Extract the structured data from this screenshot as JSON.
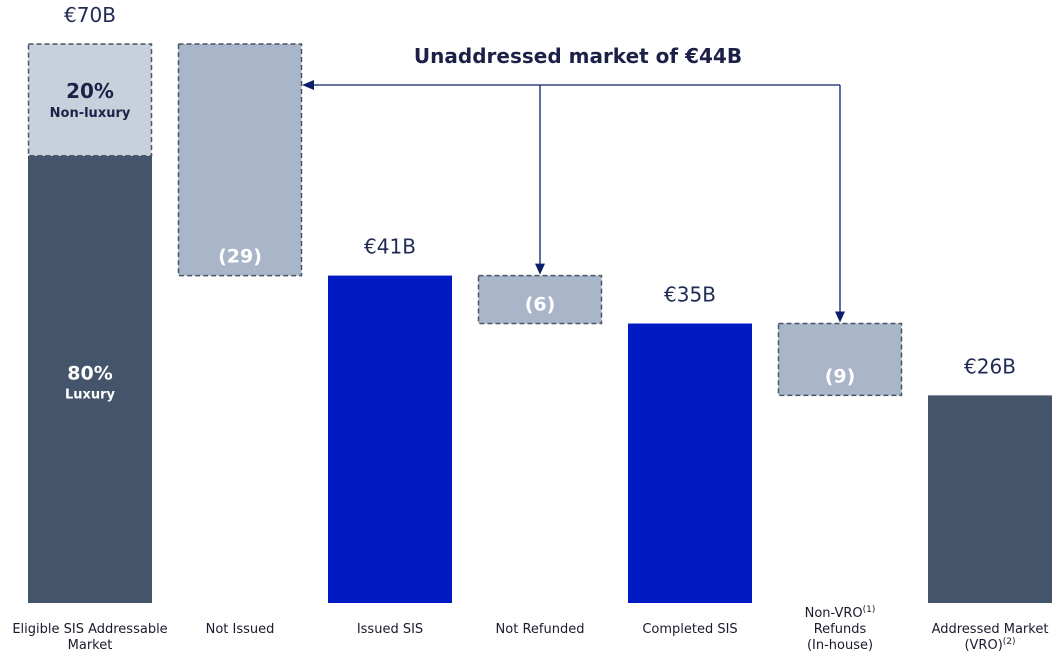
{
  "chart_data": {
    "type": "waterfall",
    "title": "Unaddressed market of €44B",
    "ylim": [
      0,
      70
    ],
    "grid": false,
    "colors": {
      "total_dark": "#44546a",
      "total_blue": "#001bc4",
      "decrease": "#a9b5c8",
      "non_luxury": "#c8d0dc",
      "border": "#4a5568",
      "arrow": "#0d1f6b",
      "title": "#1e2147"
    },
    "bars": [
      {
        "category": [
          "Eligible SIS Addressable",
          "Market"
        ],
        "kind": "total",
        "value": 70,
        "label": "€70B",
        "color": "total_dark",
        "split": [
          {
            "pct": 80,
            "text": "80%",
            "sub": "Luxury"
          },
          {
            "pct": 20,
            "text": "20%",
            "sub": "Non-luxury"
          }
        ]
      },
      {
        "category": [
          "Not Issued"
        ],
        "kind": "decrease",
        "value": -29,
        "label": "(29)"
      },
      {
        "category": [
          "Issued SIS"
        ],
        "kind": "total",
        "value": 41,
        "label": "€41B",
        "color": "total_blue"
      },
      {
        "category": [
          "Not Refunded"
        ],
        "kind": "decrease",
        "value": -6,
        "label": "(6)"
      },
      {
        "category": [
          "Completed SIS"
        ],
        "kind": "total",
        "value": 35,
        "label": "€35B",
        "color": "total_blue"
      },
      {
        "category": [
          "Non-VRO",
          "Refunds",
          "(In-house)"
        ],
        "sup": [
          "(1)",
          "",
          ""
        ],
        "kind": "decrease",
        "value": -9,
        "label": "(9)"
      },
      {
        "category": [
          "Addressed Market",
          "(VRO)"
        ],
        "sup": [
          "",
          "(2)"
        ],
        "kind": "total",
        "value": 26,
        "label": "€26B",
        "color": "total_dark"
      }
    ]
  }
}
